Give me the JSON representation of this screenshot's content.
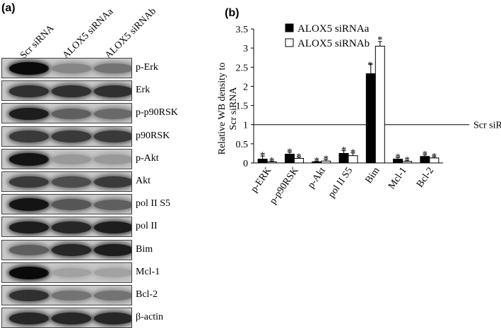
{
  "panel_a": {
    "label": "(a)",
    "lanes": [
      "Scr siRNA",
      "ALOX5 siRNAa",
      "ALOX5 siRNAb"
    ],
    "blots": [
      {
        "name": "p-Erk",
        "levels": [
          1.0,
          0.35,
          0.45
        ]
      },
      {
        "name": "Erk",
        "levels": [
          0.8,
          0.8,
          0.8
        ]
      },
      {
        "name": "p-p90RSK",
        "levels": [
          0.9,
          0.55,
          0.5
        ]
      },
      {
        "name": "p90RSK",
        "levels": [
          0.75,
          0.75,
          0.75
        ]
      },
      {
        "name": "p-Akt",
        "levels": [
          0.95,
          0.25,
          0.25
        ]
      },
      {
        "name": "Akt",
        "levels": [
          0.75,
          0.65,
          0.75
        ]
      },
      {
        "name": "pol II S5",
        "levels": [
          0.95,
          0.6,
          0.55
        ]
      },
      {
        "name": "pol II",
        "levels": [
          0.9,
          0.85,
          0.9
        ]
      },
      {
        "name": "Bim",
        "levels": [
          0.55,
          0.85,
          0.9
        ]
      },
      {
        "name": "Mcl-1",
        "levels": [
          1.0,
          0.2,
          0.2
        ]
      },
      {
        "name": "Bcl-2",
        "levels": [
          0.8,
          0.45,
          0.45
        ]
      },
      {
        "name": "β-actin",
        "levels": [
          0.85,
          0.85,
          0.85
        ]
      }
    ]
  },
  "panel_b": {
    "label": "(b)",
    "reference_label": "Scr siRNA"
  },
  "chart_data": {
    "type": "bar",
    "title": "",
    "ylabel": "Relative  WB density to Scr siRNA",
    "xlabel": "",
    "ylim": [
      0,
      3.5
    ],
    "yticks": [
      "0",
      "0.5",
      "1",
      "1.5",
      "2",
      "2.5",
      "3",
      "3.5"
    ],
    "reference_value": 1,
    "categories": [
      "p-ERK",
      "p-p90RSK",
      "p-Akt",
      "pol II S5",
      "Bim",
      "Mcl-1",
      "Bcl-2"
    ],
    "series": [
      {
        "name": "ALOX5 siRNAa",
        "color": "#000000",
        "values": [
          0.1,
          0.23,
          0.03,
          0.25,
          2.33,
          0.1,
          0.17
        ],
        "errors": [
          0.08,
          0.05,
          0.02,
          0.07,
          0.25,
          0.04,
          0.04
        ]
      },
      {
        "name": "ALOX5 siRNAb",
        "color": "#ffffff",
        "values": [
          0.03,
          0.12,
          0.05,
          0.19,
          3.05,
          0.04,
          0.13
        ],
        "errors": [
          0.02,
          0.03,
          0.04,
          0.07,
          0.12,
          0.02,
          0.03
        ]
      }
    ],
    "significance_marker": "*",
    "grid": false,
    "legend_position": "top-left"
  }
}
